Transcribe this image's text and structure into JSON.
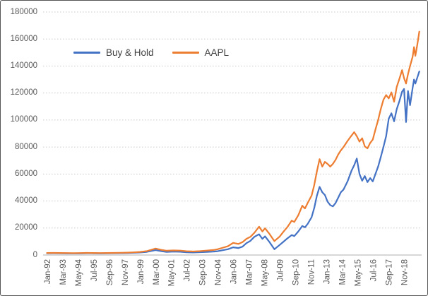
{
  "chart_data": {
    "type": "line",
    "title": "",
    "grid": "horizontal-dotted",
    "legend_position": "inside-top-left",
    "y_axis": {
      "min": 0,
      "max": 180000,
      "step": 20000,
      "tick_labels": [
        "0",
        "20000",
        "40000",
        "60000",
        "80000",
        "100000",
        "120000",
        "140000",
        "160000",
        "180000"
      ]
    },
    "x_axis": {
      "unit": "month-year",
      "range_years": [
        1992.0,
        2020.0
      ],
      "ticks": [
        {
          "label": "Jan-92",
          "year": 1992.0
        },
        {
          "label": "Mar-93",
          "year": 1993.1667
        },
        {
          "label": "May-94",
          "year": 1994.3333
        },
        {
          "label": "Jul-95",
          "year": 1995.5
        },
        {
          "label": "Sep-96",
          "year": 1996.6667
        },
        {
          "label": "Nov-97",
          "year": 1997.8333
        },
        {
          "label": "Jan-99",
          "year": 1999.0
        },
        {
          "label": "Mar-00",
          "year": 2000.1667
        },
        {
          "label": "May-01",
          "year": 2001.3333
        },
        {
          "label": "Jul-02",
          "year": 2002.5
        },
        {
          "label": "Sep-03",
          "year": 2003.6667
        },
        {
          "label": "Nov-04",
          "year": 2004.8333
        },
        {
          "label": "Jan-06",
          "year": 2006.0
        },
        {
          "label": "Mar-07",
          "year": 2007.1667
        },
        {
          "label": "May-08",
          "year": 2008.3333
        },
        {
          "label": "Jul-09",
          "year": 2009.5
        },
        {
          "label": "Sep-10",
          "year": 2010.6667
        },
        {
          "label": "Nov-11",
          "year": 2011.8333
        },
        {
          "label": "Jan-13",
          "year": 2013.0
        },
        {
          "label": "Mar-14",
          "year": 2014.1667
        },
        {
          "label": "May-15",
          "year": 2015.3333
        },
        {
          "label": "Jul-16",
          "year": 2016.5
        },
        {
          "label": "Sep-17",
          "year": 2017.6667
        },
        {
          "label": "Nov-18",
          "year": 2018.8333
        }
      ]
    },
    "x": [
      1992.0,
      1992.5,
      1993.0,
      1993.5,
      1994.0,
      1994.5,
      1995.0,
      1995.5,
      1996.0,
      1996.5,
      1997.0,
      1997.5,
      1998.0,
      1998.5,
      1999.0,
      1999.5,
      2000.17,
      2000.6,
      2001.0,
      2001.5,
      2002.0,
      2002.5,
      2003.0,
      2003.5,
      2004.0,
      2004.5,
      2004.83,
      2005.25,
      2005.6,
      2006.0,
      2006.4,
      2006.7,
      2007.0,
      2007.3,
      2007.6,
      2007.95,
      2008.2,
      2008.4,
      2008.7,
      2009.1,
      2009.5,
      2009.8,
      2010.1,
      2010.4,
      2010.6,
      2010.9,
      2011.2,
      2011.4,
      2011.6,
      2011.9,
      2012.1,
      2012.3,
      2012.5,
      2012.7,
      2012.9,
      2013.1,
      2013.3,
      2013.5,
      2013.7,
      2013.9,
      2014.1,
      2014.3,
      2014.6,
      2014.9,
      2015.1,
      2015.3,
      2015.5,
      2015.7,
      2015.9,
      2016.1,
      2016.3,
      2016.5,
      2016.7,
      2016.9,
      2017.1,
      2017.3,
      2017.5,
      2017.7,
      2017.9,
      2018.1,
      2018.3,
      2018.5,
      2018.7,
      2018.85,
      2019.0,
      2019.15,
      2019.3,
      2019.5,
      2019.6,
      2019.7,
      2019.85,
      2020.0
    ],
    "series": [
      {
        "name": "Buy & Hold",
        "color": "#4472C4",
        "values": [
          1300,
          1350,
          1300,
          1250,
          1200,
          1250,
          1350,
          1300,
          1250,
          1300,
          1350,
          1400,
          1500,
          1700,
          1900,
          2300,
          3600,
          2900,
          2300,
          2500,
          2400,
          2000,
          1900,
          2100,
          2300,
          2500,
          2800,
          3600,
          4300,
          5700,
          5200,
          6200,
          8800,
          10500,
          13500,
          15400,
          12000,
          13800,
          10000,
          4300,
          7500,
          10000,
          12500,
          14800,
          14000,
          17500,
          21500,
          20500,
          23000,
          28000,
          35000,
          44000,
          50500,
          46500,
          44500,
          39500,
          37000,
          36000,
          38500,
          42500,
          46500,
          48500,
          54500,
          62500,
          66500,
          71500,
          60000,
          55000,
          58500,
          54000,
          57000,
          54500,
          60000,
          65500,
          72500,
          80000,
          88000,
          101000,
          105000,
          99000,
          108000,
          114000,
          121000,
          123000,
          98500,
          121500,
          111000,
          124000,
          130000,
          127000,
          131500,
          136000
        ]
      },
      {
        "name": "AAPL",
        "color": "#ED7D31",
        "values": [
          1500,
          1550,
          1500,
          1450,
          1400,
          1450,
          1550,
          1500,
          1450,
          1500,
          1550,
          1650,
          1800,
          2000,
          2300,
          2900,
          4800,
          3800,
          3200,
          3400,
          3300,
          2800,
          2600,
          2900,
          3300,
          3700,
          4300,
          5500,
          6500,
          9000,
          8200,
          9500,
          12000,
          13500,
          16500,
          21000,
          17500,
          19800,
          16000,
          10300,
          13700,
          17500,
          21000,
          25500,
          24500,
          29500,
          36500,
          34500,
          38500,
          44000,
          52000,
          62000,
          71000,
          65500,
          69000,
          67500,
          65500,
          67500,
          70500,
          74500,
          77500,
          80000,
          84500,
          88500,
          91000,
          88000,
          84000,
          86500,
          80500,
          79000,
          83000,
          85500,
          93000,
          100000,
          108000,
          115000,
          118500,
          116000,
          120500,
          113500,
          124500,
          130500,
          137000,
          131000,
          127000,
          134000,
          140000,
          147000,
          154000,
          147500,
          156000,
          165500
        ]
      }
    ],
    "colors": {
      "gridline": "#cccccc",
      "axis_line": "#bfbfbf",
      "tick_text": "#595959",
      "legend_text": "#404040"
    }
  }
}
